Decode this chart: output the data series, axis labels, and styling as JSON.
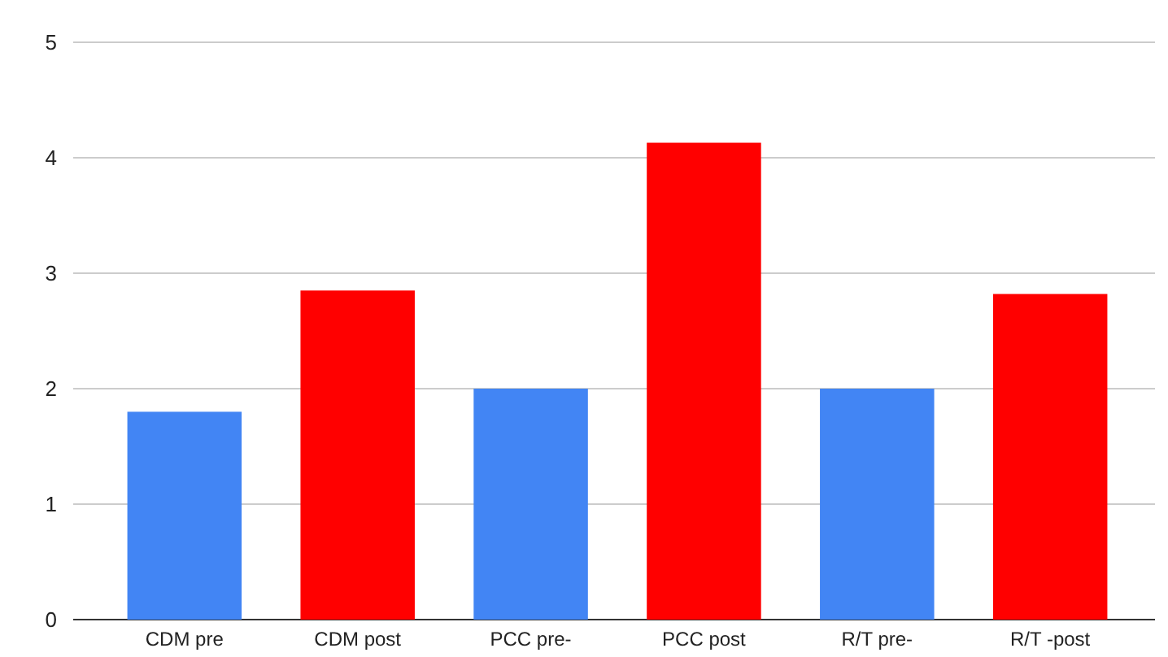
{
  "chart_data": {
    "type": "bar",
    "categories": [
      "CDM pre",
      "CDM post",
      "PCC pre-",
      "PCC post",
      "R/T pre-",
      "R/T -post"
    ],
    "values": [
      1.8,
      2.85,
      2.0,
      4.13,
      2.0,
      2.82
    ],
    "colors": [
      "#4285f4",
      "#ff0000",
      "#4285f4",
      "#ff0000",
      "#4285f4",
      "#ff0000"
    ],
    "ylim": [
      0,
      5
    ],
    "yticks": [
      0,
      1,
      2,
      3,
      4,
      5
    ],
    "grid": "y"
  }
}
